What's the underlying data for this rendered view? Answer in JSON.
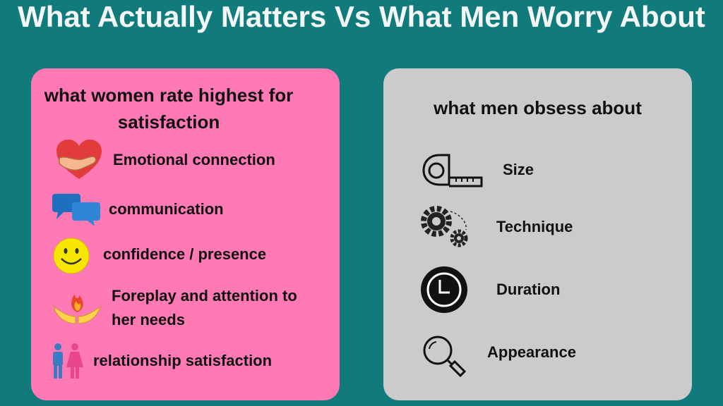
{
  "title": "What Actually Matters Vs What Men Worry About",
  "left": {
    "heading": "what women rate highest for satisfaction",
    "items": [
      "Emotional connection",
      "communication",
      "confidence / presence",
      "Foreplay and attention to her needs",
      "relationship satisfaction"
    ]
  },
  "right": {
    "heading": "what men obsess about",
    "items": [
      "Size",
      "Technique",
      "Duration",
      "Appearance"
    ]
  }
}
